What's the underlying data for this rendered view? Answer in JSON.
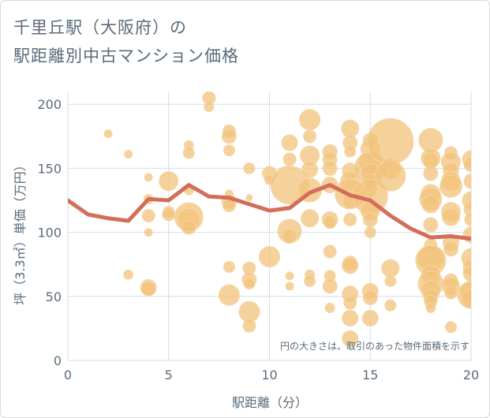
{
  "title_line1": "千里丘駅（大阪府）の",
  "title_line2": "駅距離別中古マンション価格",
  "colors": {
    "bubble": "#f2c27a",
    "bubble_stroke": "#f5d6a6",
    "line": "#d36e59",
    "grid": "#d6dde8",
    "text": "#5a6b79"
  },
  "chart_data": {
    "type": "scatter",
    "xlabel": "駅距離（分）",
    "ylabel": "坪（3.3㎡）単価（万円）",
    "xlim": [
      0,
      20
    ],
    "ylim": [
      0,
      210
    ],
    "xticks": [
      0,
      5,
      10,
      15,
      20
    ],
    "yticks": [
      0,
      50,
      100,
      150,
      200
    ],
    "annotation": "円の大きさは、取引のあった物件面積を示す",
    "line": {
      "x": [
        0,
        1,
        2,
        3,
        4,
        5,
        6,
        7,
        8,
        9,
        10,
        11,
        12,
        13,
        14,
        15,
        16,
        17,
        18,
        19,
        20
      ],
      "y": [
        125,
        114,
        111,
        109,
        126,
        125,
        137,
        128,
        127,
        122,
        117,
        119,
        131,
        137,
        129,
        125,
        113,
        103,
        96,
        97,
        95
      ]
    },
    "bubbles": [
      {
        "x": 2,
        "y": 177,
        "s": 5
      },
      {
        "x": 3,
        "y": 161,
        "s": 5
      },
      {
        "x": 3,
        "y": 67,
        "s": 6
      },
      {
        "x": 4,
        "y": 143,
        "s": 5
      },
      {
        "x": 4,
        "y": 126,
        "s": 6
      },
      {
        "x": 4,
        "y": 113,
        "s": 8
      },
      {
        "x": 4,
        "y": 100,
        "s": 5
      },
      {
        "x": 4,
        "y": 57,
        "s": 10
      },
      {
        "x": 4,
        "y": 56,
        "s": 9
      },
      {
        "x": 5,
        "y": 140,
        "s": 12
      },
      {
        "x": 5,
        "y": 116,
        "s": 7
      },
      {
        "x": 5,
        "y": 114,
        "s": 8
      },
      {
        "x": 6,
        "y": 168,
        "s": 6
      },
      {
        "x": 6,
        "y": 162,
        "s": 7
      },
      {
        "x": 6,
        "y": 133,
        "s": 6
      },
      {
        "x": 6,
        "y": 112,
        "s": 18
      },
      {
        "x": 6,
        "y": 110,
        "s": 14
      },
      {
        "x": 6,
        "y": 104,
        "s": 9
      },
      {
        "x": 7,
        "y": 205,
        "s": 8
      },
      {
        "x": 7,
        "y": 198,
        "s": 6
      },
      {
        "x": 8,
        "y": 179,
        "s": 8
      },
      {
        "x": 8,
        "y": 175,
        "s": 9
      },
      {
        "x": 8,
        "y": 164,
        "s": 7
      },
      {
        "x": 8,
        "y": 130,
        "s": 5
      },
      {
        "x": 8,
        "y": 124,
        "s": 9
      },
      {
        "x": 8,
        "y": 121,
        "s": 8
      },
      {
        "x": 8,
        "y": 73,
        "s": 7
      },
      {
        "x": 8,
        "y": 51,
        "s": 13
      },
      {
        "x": 9,
        "y": 150,
        "s": 7
      },
      {
        "x": 9,
        "y": 127,
        "s": 4
      },
      {
        "x": 9,
        "y": 72,
        "s": 8
      },
      {
        "x": 9,
        "y": 63,
        "s": 9
      },
      {
        "x": 9,
        "y": 60,
        "s": 7
      },
      {
        "x": 9,
        "y": 38,
        "s": 13
      },
      {
        "x": 9,
        "y": 27,
        "s": 8
      },
      {
        "x": 10,
        "y": 146,
        "s": 9
      },
      {
        "x": 10,
        "y": 141,
        "s": 6
      },
      {
        "x": 10,
        "y": 81,
        "s": 13
      },
      {
        "x": 11,
        "y": 170,
        "s": 10
      },
      {
        "x": 11,
        "y": 157,
        "s": 8
      },
      {
        "x": 11,
        "y": 137,
        "s": 24
      },
      {
        "x": 11,
        "y": 101,
        "s": 15
      },
      {
        "x": 11,
        "y": 97,
        "s": 9
      },
      {
        "x": 11,
        "y": 66,
        "s": 5
      },
      {
        "x": 11,
        "y": 58,
        "s": 5
      },
      {
        "x": 12,
        "y": 188,
        "s": 13
      },
      {
        "x": 12,
        "y": 175,
        "s": 8
      },
      {
        "x": 12,
        "y": 160,
        "s": 12
      },
      {
        "x": 12,
        "y": 149,
        "s": 10
      },
      {
        "x": 12,
        "y": 133,
        "s": 15
      },
      {
        "x": 12,
        "y": 111,
        "s": 11
      },
      {
        "x": 12,
        "y": 67,
        "s": 6
      },
      {
        "x": 12,
        "y": 62,
        "s": 7
      },
      {
        "x": 13,
        "y": 163,
        "s": 9
      },
      {
        "x": 13,
        "y": 157,
        "s": 9
      },
      {
        "x": 13,
        "y": 150,
        "s": 9
      },
      {
        "x": 13,
        "y": 137,
        "s": 10
      },
      {
        "x": 13,
        "y": 110,
        "s": 10
      },
      {
        "x": 13,
        "y": 108,
        "s": 8
      },
      {
        "x": 13,
        "y": 85,
        "s": 8
      },
      {
        "x": 13,
        "y": 66,
        "s": 7
      },
      {
        "x": 13,
        "y": 58,
        "s": 9
      },
      {
        "x": 13,
        "y": 41,
        "s": 6
      },
      {
        "x": 14,
        "y": 181,
        "s": 11
      },
      {
        "x": 14,
        "y": 170,
        "s": 9
      },
      {
        "x": 14,
        "y": 163,
        "s": 7
      },
      {
        "x": 14,
        "y": 148,
        "s": 10
      },
      {
        "x": 14,
        "y": 140,
        "s": 12
      },
      {
        "x": 14,
        "y": 130,
        "s": 19
      },
      {
        "x": 14,
        "y": 124,
        "s": 9
      },
      {
        "x": 14,
        "y": 110,
        "s": 8
      },
      {
        "x": 14,
        "y": 76,
        "s": 9
      },
      {
        "x": 14,
        "y": 74,
        "s": 10
      },
      {
        "x": 14,
        "y": 52,
        "s": 10
      },
      {
        "x": 14,
        "y": 45,
        "s": 8
      },
      {
        "x": 14,
        "y": 33,
        "s": 10
      },
      {
        "x": 14,
        "y": 17,
        "s": 10
      },
      {
        "x": 15,
        "y": 172,
        "s": 9
      },
      {
        "x": 15,
        "y": 165,
        "s": 12
      },
      {
        "x": 15,
        "y": 155,
        "s": 14
      },
      {
        "x": 15,
        "y": 150,
        "s": 20
      },
      {
        "x": 15,
        "y": 146,
        "s": 12
      },
      {
        "x": 15,
        "y": 140,
        "s": 9
      },
      {
        "x": 15,
        "y": 133,
        "s": 8
      },
      {
        "x": 15,
        "y": 128,
        "s": 22
      },
      {
        "x": 15,
        "y": 117,
        "s": 12
      },
      {
        "x": 15,
        "y": 110,
        "s": 9
      },
      {
        "x": 15,
        "y": 100,
        "s": 7
      },
      {
        "x": 15,
        "y": 54,
        "s": 10
      },
      {
        "x": 15,
        "y": 49,
        "s": 9
      },
      {
        "x": 15,
        "y": 33,
        "s": 10
      },
      {
        "x": 16,
        "y": 171,
        "s": 29
      },
      {
        "x": 16,
        "y": 150,
        "s": 13
      },
      {
        "x": 16,
        "y": 144,
        "s": 19
      },
      {
        "x": 16,
        "y": 72,
        "s": 11
      },
      {
        "x": 16,
        "y": 62,
        "s": 7
      },
      {
        "x": 16,
        "y": 43,
        "s": 7
      },
      {
        "x": 18,
        "y": 172,
        "s": 15
      },
      {
        "x": 18,
        "y": 158,
        "s": 12
      },
      {
        "x": 18,
        "y": 156,
        "s": 10
      },
      {
        "x": 18,
        "y": 146,
        "s": 9
      },
      {
        "x": 18,
        "y": 130,
        "s": 12
      },
      {
        "x": 18,
        "y": 126,
        "s": 14
      },
      {
        "x": 18,
        "y": 122,
        "s": 11
      },
      {
        "x": 18,
        "y": 106,
        "s": 9
      },
      {
        "x": 18,
        "y": 90,
        "s": 8
      },
      {
        "x": 18,
        "y": 80,
        "s": 16
      },
      {
        "x": 18,
        "y": 78,
        "s": 19
      },
      {
        "x": 18,
        "y": 67,
        "s": 12
      },
      {
        "x": 18,
        "y": 60,
        "s": 16
      },
      {
        "x": 18,
        "y": 55,
        "s": 12
      },
      {
        "x": 18,
        "y": 50,
        "s": 9
      },
      {
        "x": 18,
        "y": 46,
        "s": 8
      },
      {
        "x": 18,
        "y": 41,
        "s": 6
      },
      {
        "x": 19,
        "y": 162,
        "s": 8
      },
      {
        "x": 19,
        "y": 155,
        "s": 12
      },
      {
        "x": 19,
        "y": 148,
        "s": 10
      },
      {
        "x": 19,
        "y": 140,
        "s": 12
      },
      {
        "x": 19,
        "y": 136,
        "s": 14
      },
      {
        "x": 19,
        "y": 116,
        "s": 12
      },
      {
        "x": 19,
        "y": 112,
        "s": 11
      },
      {
        "x": 19,
        "y": 92,
        "s": 10
      },
      {
        "x": 19,
        "y": 87,
        "s": 9
      },
      {
        "x": 19,
        "y": 62,
        "s": 9
      },
      {
        "x": 19,
        "y": 58,
        "s": 11
      },
      {
        "x": 19,
        "y": 53,
        "s": 8
      },
      {
        "x": 19,
        "y": 26,
        "s": 7
      },
      {
        "x": 20,
        "y": 157,
        "s": 11
      },
      {
        "x": 20,
        "y": 153,
        "s": 9
      },
      {
        "x": 20,
        "y": 140,
        "s": 9
      },
      {
        "x": 20,
        "y": 125,
        "s": 11
      },
      {
        "x": 20,
        "y": 118,
        "s": 9
      },
      {
        "x": 20,
        "y": 110,
        "s": 8
      },
      {
        "x": 20,
        "y": 98,
        "s": 10
      },
      {
        "x": 20,
        "y": 80,
        "s": 12
      },
      {
        "x": 20,
        "y": 73,
        "s": 10
      },
      {
        "x": 20,
        "y": 68,
        "s": 10
      },
      {
        "x": 20,
        "y": 54,
        "s": 13
      },
      {
        "x": 20,
        "y": 51,
        "s": 17
      },
      {
        "x": 20,
        "y": 48,
        "s": 12
      }
    ]
  }
}
